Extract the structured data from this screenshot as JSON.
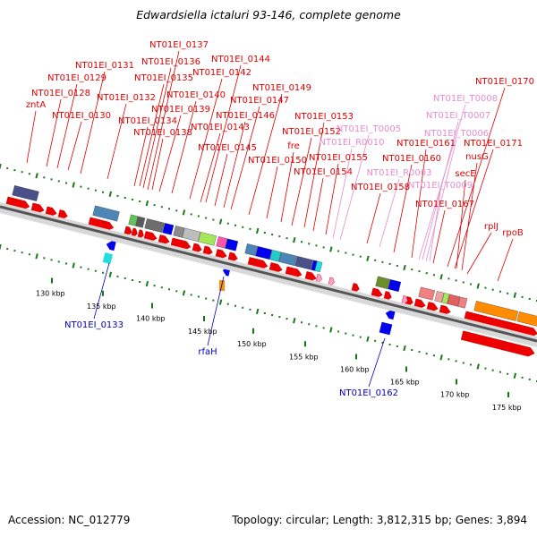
{
  "title": "Edwardsiella ictaluri 93-146, complete genome",
  "accession": "Accession: NC_012779",
  "summary": "Topology: circular; Length: 3,812,315 bp; Genes: 3,894",
  "colors": {
    "cds": "#ee0000",
    "cds_label": "#dd0000",
    "minus_label": "#0000bb",
    "rna": "#ff9ecb",
    "rna_label": "#e68ccf",
    "axis": "#555555",
    "tick": "#117711",
    "dot": "#1a7a1a"
  },
  "axis_ticks": [
    "130 kbp",
    "135 kbp",
    "140 kbp",
    "145 kbp",
    "150 kbp",
    "155 kbp",
    "160 kbp",
    "165 kbp",
    "170 kbp",
    "175 kbp"
  ],
  "gene_labels": [
    {
      "text": "zntA",
      "type": "cds",
      "strand": "plus"
    },
    {
      "text": "NT01EI_0128",
      "type": "cds",
      "strand": "plus"
    },
    {
      "text": "NT01EI_0129",
      "type": "cds",
      "strand": "plus"
    },
    {
      "text": "NT01EI_0130",
      "type": "cds",
      "strand": "plus"
    },
    {
      "text": "NT01EI_0131",
      "type": "cds",
      "strand": "plus"
    },
    {
      "text": "NT01EI_0132",
      "type": "cds",
      "strand": "plus"
    },
    {
      "text": "NT01EI_0134",
      "type": "cds",
      "strand": "plus"
    },
    {
      "text": "NT01EI_0135",
      "type": "cds",
      "strand": "plus"
    },
    {
      "text": "NT01EI_0136",
      "type": "cds",
      "strand": "plus"
    },
    {
      "text": "NT01EI_0137",
      "type": "cds",
      "strand": "plus"
    },
    {
      "text": "NT01EI_0138",
      "type": "cds",
      "strand": "plus"
    },
    {
      "text": "NT01EI_0139",
      "type": "cds",
      "strand": "plus"
    },
    {
      "text": "NT01EI_0140",
      "type": "cds",
      "strand": "plus"
    },
    {
      "text": "NT01EI_0142",
      "type": "cds",
      "strand": "plus"
    },
    {
      "text": "NT01EI_0143",
      "type": "cds",
      "strand": "plus"
    },
    {
      "text": "NT01EI_0144",
      "type": "cds",
      "strand": "plus"
    },
    {
      "text": "NT01EI_0145",
      "type": "cds",
      "strand": "plus"
    },
    {
      "text": "NT01EI_0146",
      "type": "cds",
      "strand": "plus"
    },
    {
      "text": "NT01EI_0147",
      "type": "cds",
      "strand": "plus"
    },
    {
      "text": "NT01EI_0149",
      "type": "cds",
      "strand": "plus"
    },
    {
      "text": "NT01EI_0150",
      "type": "cds",
      "strand": "plus"
    },
    {
      "text": "fre",
      "type": "cds",
      "strand": "plus"
    },
    {
      "text": "NT01EI_0152",
      "type": "cds",
      "strand": "plus"
    },
    {
      "text": "NT01EI_0153",
      "type": "cds",
      "strand": "plus"
    },
    {
      "text": "NT01EI_0154",
      "type": "cds",
      "strand": "plus"
    },
    {
      "text": "NT01EI_0155",
      "type": "cds",
      "strand": "plus"
    },
    {
      "text": "NT01EI_T0005",
      "type": "rna",
      "strand": "plus"
    },
    {
      "text": "NT01EI_R0010",
      "type": "rna",
      "strand": "plus"
    },
    {
      "text": "NT01EI_R0003",
      "type": "rna",
      "strand": "plus"
    },
    {
      "text": "NT01EI_0158",
      "type": "cds",
      "strand": "plus"
    },
    {
      "text": "NT01EI_0160",
      "type": "cds",
      "strand": "plus"
    },
    {
      "text": "NT01EI_0161",
      "type": "cds",
      "strand": "plus"
    },
    {
      "text": "NT01EI_T0008",
      "type": "rna",
      "strand": "plus"
    },
    {
      "text": "NT01EI_T0007",
      "type": "rna",
      "strand": "plus"
    },
    {
      "text": "NT01EI_T0006",
      "type": "rna",
      "strand": "plus"
    },
    {
      "text": "NT01EI_T0009",
      "type": "rna",
      "strand": "plus"
    },
    {
      "text": "NT01EI_0167",
      "type": "cds",
      "strand": "plus"
    },
    {
      "text": "NT01EI_0170",
      "type": "cds",
      "strand": "plus"
    },
    {
      "text": "NT01EI_0171",
      "type": "cds",
      "strand": "plus"
    },
    {
      "text": "nusG",
      "type": "cds",
      "strand": "plus"
    },
    {
      "text": "secE",
      "type": "cds",
      "strand": "plus"
    },
    {
      "text": "rplJ",
      "type": "cds",
      "strand": "plus"
    },
    {
      "text": "rpoB",
      "type": "cds",
      "strand": "plus"
    },
    {
      "text": "NT01EI_0133",
      "type": "cds",
      "strand": "minus"
    },
    {
      "text": "rfaH",
      "type": "cds",
      "strand": "minus"
    },
    {
      "text": "NT01EI_0162",
      "type": "cds",
      "strand": "minus"
    }
  ]
}
